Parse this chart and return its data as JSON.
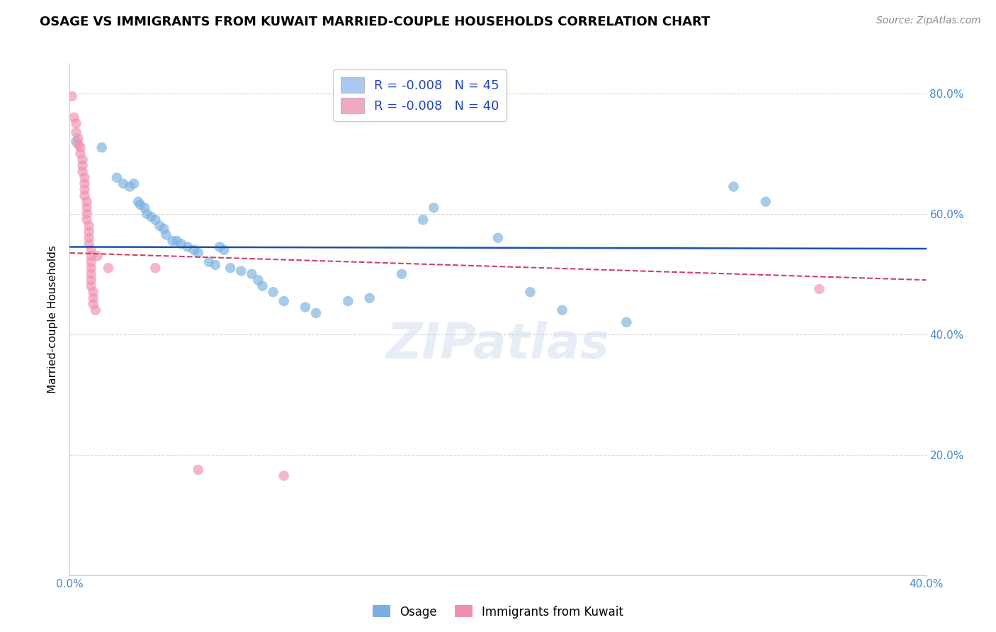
{
  "title": "OSAGE VS IMMIGRANTS FROM KUWAIT MARRIED-COUPLE HOUSEHOLDS CORRELATION CHART",
  "source": "Source: ZipAtlas.com",
  "ylabel": "Married-couple Households",
  "watermark": "ZIPatlas",
  "xlim": [
    0.0,
    0.4
  ],
  "ylim": [
    0.0,
    0.85
  ],
  "xticks": [
    0.0,
    0.05,
    0.1,
    0.15,
    0.2,
    0.25,
    0.3,
    0.35,
    0.4
  ],
  "yticks": [
    0.0,
    0.2,
    0.4,
    0.6,
    0.8
  ],
  "xticklabels": [
    "0.0%",
    "",
    "",
    "",
    "",
    "",
    "",
    "",
    "40.0%"
  ],
  "yticklabels_right": [
    "",
    "20.0%",
    "40.0%",
    "60.0%",
    "80.0%"
  ],
  "legend_r1": "R = -0.008   N = 45",
  "legend_r2": "R = -0.008   N = 40",
  "legend_color1": "#aac8f0",
  "legend_color2": "#f0aac0",
  "blue_series_label": "Osage",
  "pink_series_label": "Immigrants from Kuwait",
  "blue_color": "#7ab0e0",
  "pink_color": "#f090b0",
  "blue_line_color": "#1a50b0",
  "pink_line_color": "#d04060",
  "blue_scatter": [
    [
      0.003,
      0.72
    ],
    [
      0.015,
      0.71
    ],
    [
      0.022,
      0.66
    ],
    [
      0.025,
      0.65
    ],
    [
      0.028,
      0.645
    ],
    [
      0.03,
      0.65
    ],
    [
      0.032,
      0.62
    ],
    [
      0.033,
      0.615
    ],
    [
      0.035,
      0.61
    ],
    [
      0.036,
      0.6
    ],
    [
      0.038,
      0.595
    ],
    [
      0.04,
      0.59
    ],
    [
      0.042,
      0.58
    ],
    [
      0.044,
      0.575
    ],
    [
      0.045,
      0.565
    ],
    [
      0.048,
      0.555
    ],
    [
      0.05,
      0.555
    ],
    [
      0.052,
      0.55
    ],
    [
      0.055,
      0.545
    ],
    [
      0.058,
      0.54
    ],
    [
      0.06,
      0.535
    ],
    [
      0.065,
      0.52
    ],
    [
      0.068,
      0.515
    ],
    [
      0.07,
      0.545
    ],
    [
      0.072,
      0.54
    ],
    [
      0.075,
      0.51
    ],
    [
      0.08,
      0.505
    ],
    [
      0.085,
      0.5
    ],
    [
      0.088,
      0.49
    ],
    [
      0.09,
      0.48
    ],
    [
      0.095,
      0.47
    ],
    [
      0.1,
      0.455
    ],
    [
      0.11,
      0.445
    ],
    [
      0.115,
      0.435
    ],
    [
      0.13,
      0.455
    ],
    [
      0.14,
      0.46
    ],
    [
      0.155,
      0.5
    ],
    [
      0.165,
      0.59
    ],
    [
      0.17,
      0.61
    ],
    [
      0.2,
      0.56
    ],
    [
      0.215,
      0.47
    ],
    [
      0.23,
      0.44
    ],
    [
      0.26,
      0.42
    ],
    [
      0.31,
      0.645
    ],
    [
      0.325,
      0.62
    ]
  ],
  "pink_scatter": [
    [
      0.001,
      0.795
    ],
    [
      0.002,
      0.76
    ],
    [
      0.003,
      0.75
    ],
    [
      0.003,
      0.735
    ],
    [
      0.004,
      0.725
    ],
    [
      0.004,
      0.715
    ],
    [
      0.005,
      0.71
    ],
    [
      0.005,
      0.7
    ],
    [
      0.006,
      0.69
    ],
    [
      0.006,
      0.68
    ],
    [
      0.006,
      0.67
    ],
    [
      0.007,
      0.66
    ],
    [
      0.007,
      0.65
    ],
    [
      0.007,
      0.64
    ],
    [
      0.007,
      0.63
    ],
    [
      0.008,
      0.62
    ],
    [
      0.008,
      0.61
    ],
    [
      0.008,
      0.6
    ],
    [
      0.008,
      0.59
    ],
    [
      0.009,
      0.58
    ],
    [
      0.009,
      0.57
    ],
    [
      0.009,
      0.56
    ],
    [
      0.009,
      0.55
    ],
    [
      0.01,
      0.54
    ],
    [
      0.01,
      0.53
    ],
    [
      0.01,
      0.52
    ],
    [
      0.01,
      0.51
    ],
    [
      0.01,
      0.5
    ],
    [
      0.01,
      0.49
    ],
    [
      0.01,
      0.48
    ],
    [
      0.011,
      0.47
    ],
    [
      0.011,
      0.46
    ],
    [
      0.011,
      0.45
    ],
    [
      0.012,
      0.44
    ],
    [
      0.013,
      0.53
    ],
    [
      0.018,
      0.51
    ],
    [
      0.04,
      0.51
    ],
    [
      0.06,
      0.175
    ],
    [
      0.1,
      0.165
    ],
    [
      0.35,
      0.475
    ]
  ],
  "blue_trendline_x": [
    0.0,
    0.4
  ],
  "blue_trendline_y": [
    0.545,
    0.542
  ],
  "pink_trendline_x": [
    0.0,
    0.4
  ],
  "pink_trendline_y": [
    0.535,
    0.49
  ],
  "grid_color": "#cccccc",
  "background_color": "#ffffff"
}
